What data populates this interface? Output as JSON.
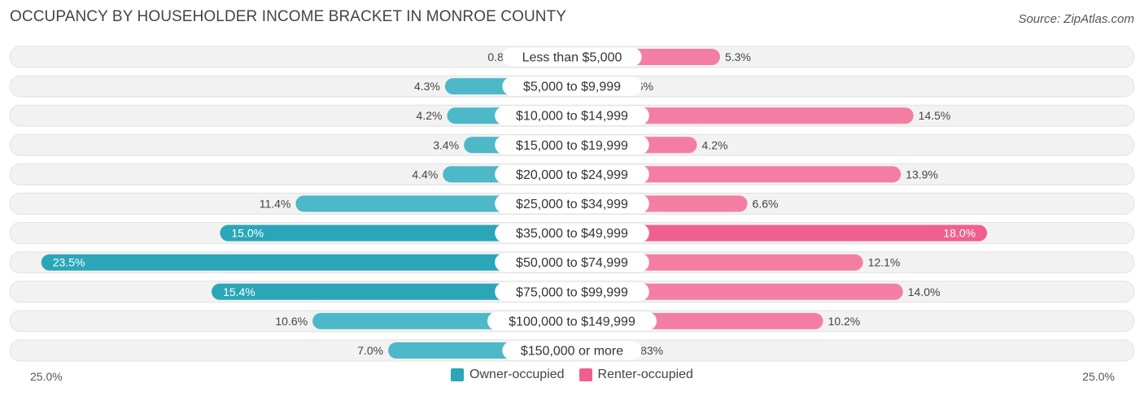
{
  "title": "OCCUPANCY BY HOUSEHOLDER INCOME BRACKET IN MONROE COUNTY",
  "source": "Source: ZipAtlas.com",
  "colors": {
    "owner": "#4db8c8",
    "owner_dark": "#2aa6b8",
    "renter": "#f47ea3",
    "renter_dark": "#f0608e",
    "row_bg": "#eeeeee"
  },
  "legend": {
    "owner_label": "Owner-occupied",
    "renter_label": "Renter-occupied"
  },
  "axis": {
    "left_label": "25.0%",
    "right_label": "25.0%"
  },
  "chart_data": {
    "type": "bar",
    "orientation": "horizontal-diverging",
    "categories": [
      "Less than $5,000",
      "$5,000 to $9,999",
      "$10,000 to $14,999",
      "$15,000 to $19,999",
      "$20,000 to $24,999",
      "$25,000 to $34,999",
      "$35,000 to $49,999",
      "$50,000 to $74,999",
      "$75,000 to $99,999",
      "$100,000 to $149,999",
      "$150,000 or more"
    ],
    "series": [
      {
        "name": "Owner-occupied",
        "values": [
          0.8,
          4.3,
          4.2,
          3.4,
          4.4,
          11.4,
          15.0,
          23.5,
          15.4,
          10.6,
          7.0
        ],
        "labels": [
          "0.8%",
          "4.3%",
          "4.2%",
          "3.4%",
          "4.4%",
          "11.4%",
          "15.0%",
          "23.5%",
          "15.4%",
          "10.6%",
          "7.0%"
        ]
      },
      {
        "name": "Renter-occupied",
        "values": [
          5.3,
          0.36,
          14.5,
          4.2,
          13.9,
          6.6,
          18.0,
          12.1,
          14.0,
          10.2,
          0.83
        ],
        "labels": [
          "5.3%",
          "0.36%",
          "14.5%",
          "4.2%",
          "13.9%",
          "6.6%",
          "18.0%",
          "12.1%",
          "14.0%",
          "10.2%",
          "0.83%"
        ]
      }
    ],
    "xlim": [
      -25,
      25
    ],
    "legend_position": "bottom-center"
  }
}
